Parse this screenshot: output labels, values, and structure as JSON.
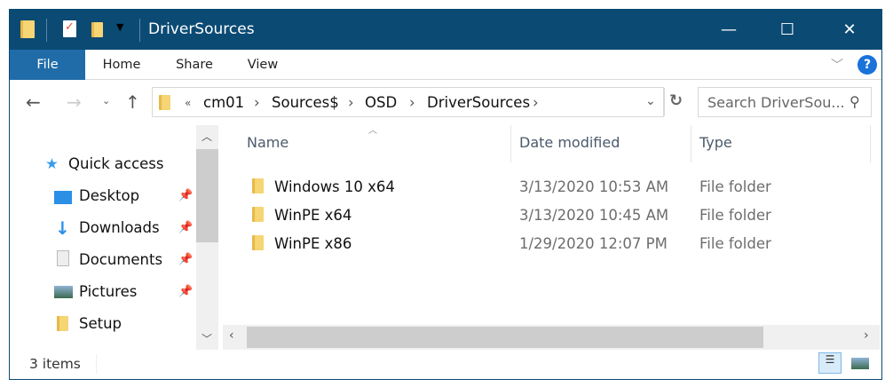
{
  "window": {
    "title": "DriverSources",
    "controls": {
      "minimize": "—",
      "maximize": "☐",
      "close": "✕"
    }
  },
  "ribbon": {
    "tabs": [
      "File",
      "Home",
      "Share",
      "View"
    ],
    "help": "?"
  },
  "address": {
    "overflow": "«",
    "crumbs": [
      "cm01",
      "Sources$",
      "OSD",
      "DriverSources"
    ],
    "separator": "›"
  },
  "search": {
    "placeholder": "Search DriverSou..."
  },
  "nav_pane": {
    "quick_access": "Quick access",
    "items": [
      {
        "label": "Desktop",
        "pinned": true
      },
      {
        "label": "Downloads",
        "pinned": true
      },
      {
        "label": "Documents",
        "pinned": true
      },
      {
        "label": "Pictures",
        "pinned": true
      },
      {
        "label": "Setup",
        "pinned": false
      }
    ]
  },
  "columns": [
    "Name",
    "Date modified",
    "Type"
  ],
  "files": [
    {
      "name": "Windows 10 x64",
      "date": "3/13/2020 10:53 AM",
      "type": "File folder"
    },
    {
      "name": "WinPE x64",
      "date": "3/13/2020 10:45 AM",
      "type": "File folder"
    },
    {
      "name": "WinPE x86",
      "date": "1/29/2020 12:07 PM",
      "type": "File folder"
    }
  ],
  "status": {
    "items": "3 items"
  }
}
